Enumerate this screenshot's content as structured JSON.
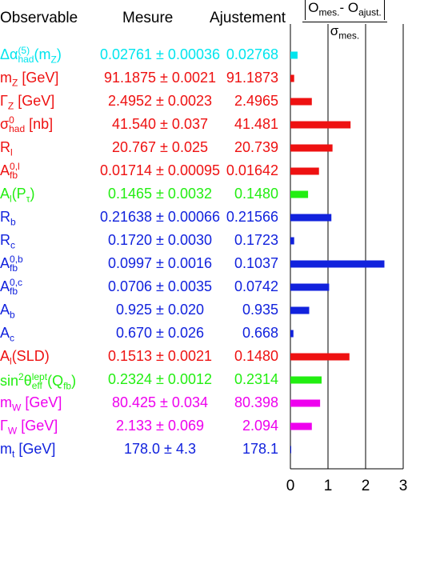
{
  "header": {
    "observable": "Observable",
    "measure": "Mesure",
    "fit": "Ajustement",
    "pull_num_O1": "O",
    "pull_num_sub1": "mes.",
    "pull_num_mid": "- O",
    "pull_num_sub2": "ajust.",
    "pull_den": "σ",
    "pull_den_sub": "mes."
  },
  "colors": {
    "cyan": "#00e5ee",
    "red": "#ee1111",
    "green": "#22ee11",
    "blue": "#1122dd",
    "magenta": "#ee00ee"
  },
  "rows": [
    {
      "color": "#00e5ee",
      "measure": "0.02761 ± 0.00036",
      "fit": "0.02768"
    },
    {
      "color": "#ee1111",
      "measure": "91.1875 ± 0.0021",
      "fit": "91.1873"
    },
    {
      "color": "#ee1111",
      "measure": "2.4952 ± 0.0023",
      "fit": "2.4965"
    },
    {
      "color": "#ee1111",
      "measure": "41.540 ± 0.037",
      "fit": "41.481"
    },
    {
      "color": "#ee1111",
      "measure": "20.767 ± 0.025",
      "fit": "20.739"
    },
    {
      "color": "#ee1111",
      "measure": "0.01714 ± 0.00095",
      "fit": "0.01642"
    },
    {
      "color": "#22ee11",
      "measure": "0.1465 ± 0.0032",
      "fit": "0.1480"
    },
    {
      "color": "#1122dd",
      "measure": "0.21638 ± 0.00066",
      "fit": "0.21566"
    },
    {
      "color": "#1122dd",
      "measure": "0.1720 ± 0.0030",
      "fit": "0.1723"
    },
    {
      "color": "#1122dd",
      "measure": "0.0997 ± 0.0016",
      "fit": "0.1037"
    },
    {
      "color": "#1122dd",
      "measure": "0.0706 ± 0.0035",
      "fit": "0.0742"
    },
    {
      "color": "#1122dd",
      "measure": "0.925 ± 0.020",
      "fit": "0.935"
    },
    {
      "color": "#1122dd",
      "measure": "0.670 ± 0.026",
      "fit": "0.668"
    },
    {
      "color": "#ee1111",
      "measure": "0.1513 ± 0.0021",
      "fit": "0.1480"
    },
    {
      "color": "#22ee11",
      "measure": "0.2324 ± 0.0012",
      "fit": "0.2314"
    },
    {
      "color": "#ee00ee",
      "measure": "80.425 ± 0.034",
      "fit": "80.398"
    },
    {
      "color": "#ee00ee",
      "measure": "2.133 ± 0.069",
      "fit": "2.094"
    },
    {
      "color": "#1122dd",
      "measure": "178.0 ± 4.3",
      "fit": "178.1"
    }
  ],
  "labels": {
    "r0": {
      "main": "Δα",
      "sup": "(5)",
      "sub": "had",
      "tail_open": "(m",
      "tail_sub": "Z",
      "tail_close": ")"
    },
    "r1": {
      "main": "m",
      "sub": "Z",
      "tail": " [GeV]"
    },
    "r2": {
      "main": "Γ",
      "sub": "Z",
      "tail": " [GeV]"
    },
    "r3": {
      "main": "σ",
      "sup": "0",
      "sub": "had",
      "tail": " [nb]"
    },
    "r4": {
      "main": "R",
      "sub": "l"
    },
    "r5": {
      "main": "A",
      "sup": "0,l",
      "sub": "fb"
    },
    "r6": {
      "main": "A",
      "sub": "l",
      "tail_open": "(P",
      "tail_sub": "τ",
      "tail_close": ")"
    },
    "r7": {
      "main": "R",
      "sub": "b"
    },
    "r8": {
      "main": "R",
      "sub": "c"
    },
    "r9": {
      "main": "A",
      "sup": "0,b",
      "sub": "fb"
    },
    "r10": {
      "main": "A",
      "sup": "0,c",
      "sub": "fb"
    },
    "r11": {
      "main": "A",
      "sub": "b"
    },
    "r12": {
      "main": "A",
      "sub": "c"
    },
    "r13": {
      "main": "A",
      "sub": "l",
      "tail": "(SLD)"
    },
    "r14": {
      "main": "sin",
      "sup1": "2",
      "main2": "θ",
      "sup": "lept",
      "sub": "eff",
      "tail_open": "(Q",
      "tail_sub": "fb",
      "tail_close": ")"
    },
    "r15": {
      "main": "m",
      "sub": "W",
      "tail": " [GeV]"
    },
    "r16": {
      "main": "Γ",
      "sub": "W",
      "tail": " [GeV]"
    },
    "r17": {
      "main": "m",
      "sub": "t",
      "tail": " [GeV]"
    }
  },
  "chart_data": {
    "type": "bar",
    "orientation": "horizontal",
    "categories": [
      "Δα(5)had(mZ)",
      "mZ [GeV]",
      "ΓZ [GeV]",
      "σ0had [nb]",
      "Rl",
      "A0,lfb",
      "Al(Pτ)",
      "Rb",
      "Rc",
      "A0,bfb",
      "A0,cfb",
      "Ab",
      "Ac",
      "Al(SLD)",
      "sin2θlepteff(Qfb)",
      "mW [GeV]",
      "ΓW [GeV]",
      "mt [GeV]"
    ],
    "values": [
      0.19,
      0.1,
      0.57,
      1.6,
      1.12,
      0.76,
      0.47,
      1.09,
      0.1,
      2.5,
      1.03,
      0.5,
      0.08,
      1.57,
      0.83,
      0.79,
      0.57,
      0.02
    ],
    "xlim": [
      0,
      3
    ],
    "xticks": [
      0,
      1,
      2,
      3
    ],
    "grid": "vertical lines at 1 and 2"
  }
}
